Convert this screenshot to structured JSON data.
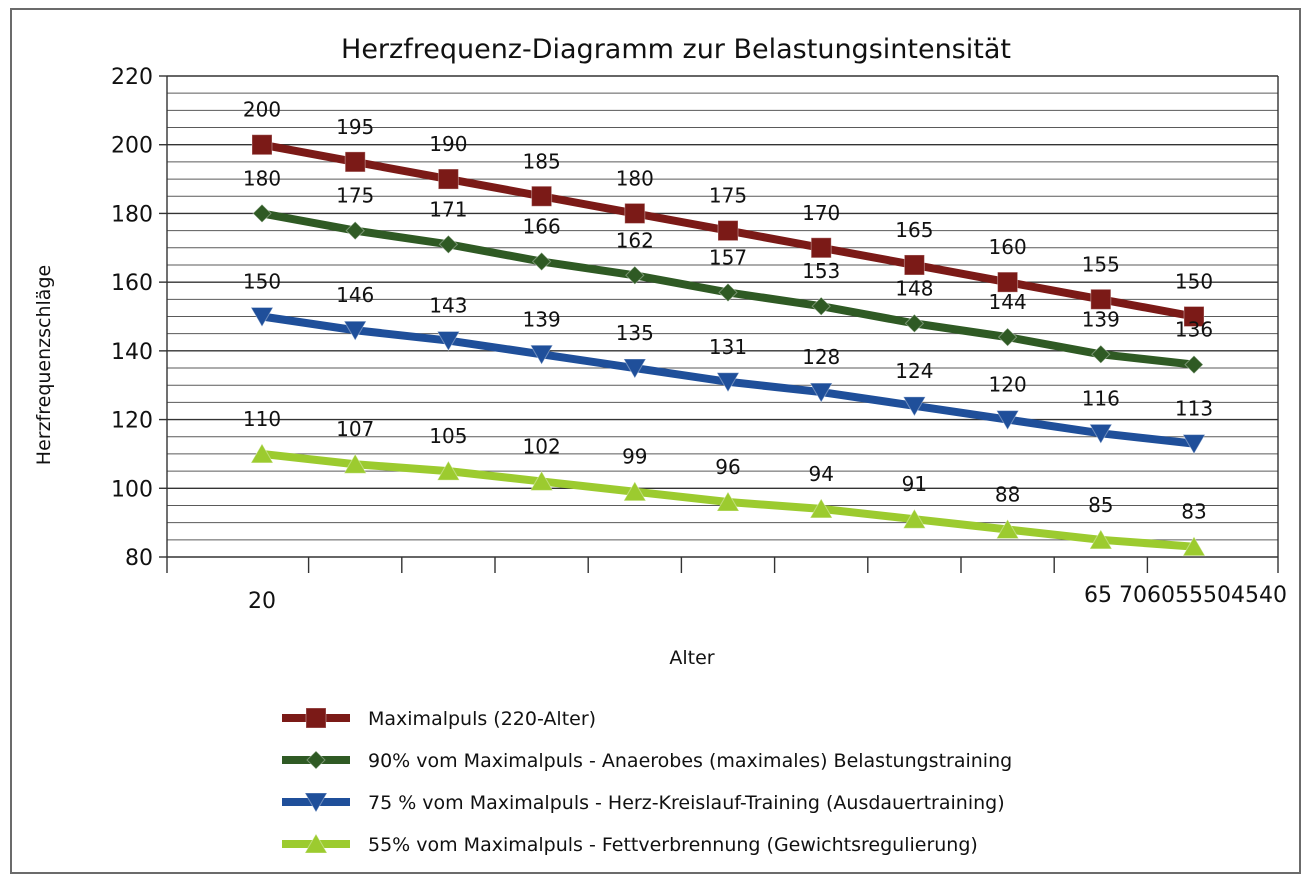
{
  "chart_data": {
    "type": "line",
    "title": "Herzfrequenz-Diagramm zur Belastungsintensität",
    "xlabel": "Alter",
    "ylabel": "Herzfrequenzschläge",
    "ylim": [
      80,
      220
    ],
    "y_major_ticks": [
      80,
      100,
      120,
      140,
      160,
      180,
      200,
      220
    ],
    "y_grid_step": 5,
    "grid": true,
    "legend_position": "bottom",
    "x_tick_labels": [
      "20",
      "65 706055504540"
    ],
    "point_count": 11,
    "series": [
      {
        "name": "Maximalpuls (220-Alter)",
        "color": "#7b1a17",
        "marker": "square",
        "values": [
          200,
          195,
          190,
          185,
          180,
          175,
          170,
          165,
          160,
          155,
          150
        ]
      },
      {
        "name": "90% vom Maximalpuls - Anaerobes (maximales) Belastungstraining",
        "color": "#2f5a24",
        "marker": "diamond",
        "values": [
          180,
          175,
          171,
          166,
          162,
          157,
          153,
          148,
          144,
          139,
          136
        ]
      },
      {
        "name": "75 % vom Maximalpuls - Herz-Kreislauf-Training (Ausdauertraining)",
        "color": "#1f4f9a",
        "marker": "triangle-down",
        "values": [
          150,
          146,
          143,
          139,
          135,
          131,
          128,
          124,
          120,
          116,
          113
        ]
      },
      {
        "name": "55% vom Maximalpuls - Fettverbrennung (Gewichtsregulierung)",
        "color": "#9ccb2f",
        "marker": "triangle-up",
        "values": [
          110,
          107,
          105,
          102,
          99,
          96,
          94,
          91,
          88,
          85,
          83
        ]
      }
    ]
  }
}
